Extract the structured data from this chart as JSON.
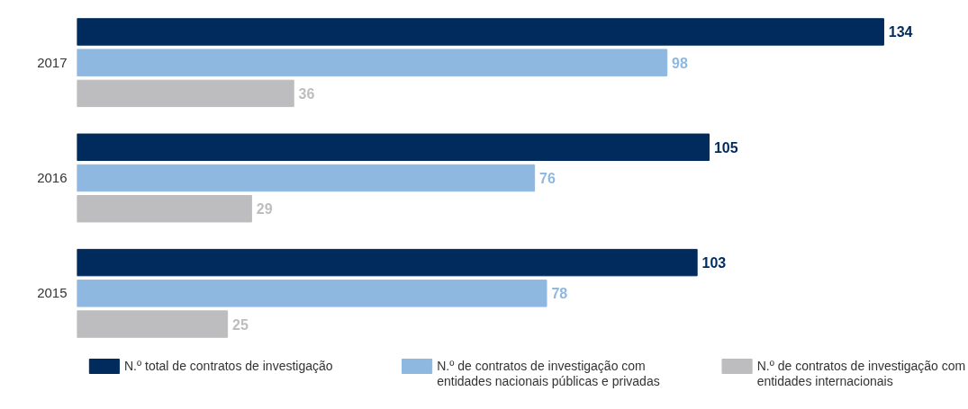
{
  "chart_data": {
    "type": "bar",
    "orientation": "horizontal",
    "categories": [
      "2017",
      "2016",
      "2015"
    ],
    "series": [
      {
        "name": "N.º total de contratos de investigação",
        "color": "#002b5c",
        "values": [
          134,
          105,
          103
        ]
      },
      {
        "name": "N.º de contratos de investigação com entidades nacionais públicas e privadas",
        "color": "#8fb8e0",
        "values": [
          98,
          76,
          78
        ]
      },
      {
        "name": "N.º de contratos de investigação com entidades internacionais",
        "color": "#bdbdbf",
        "values": [
          36,
          29,
          25
        ]
      }
    ],
    "data_labels": true,
    "legend": "bottom",
    "grid": false
  }
}
